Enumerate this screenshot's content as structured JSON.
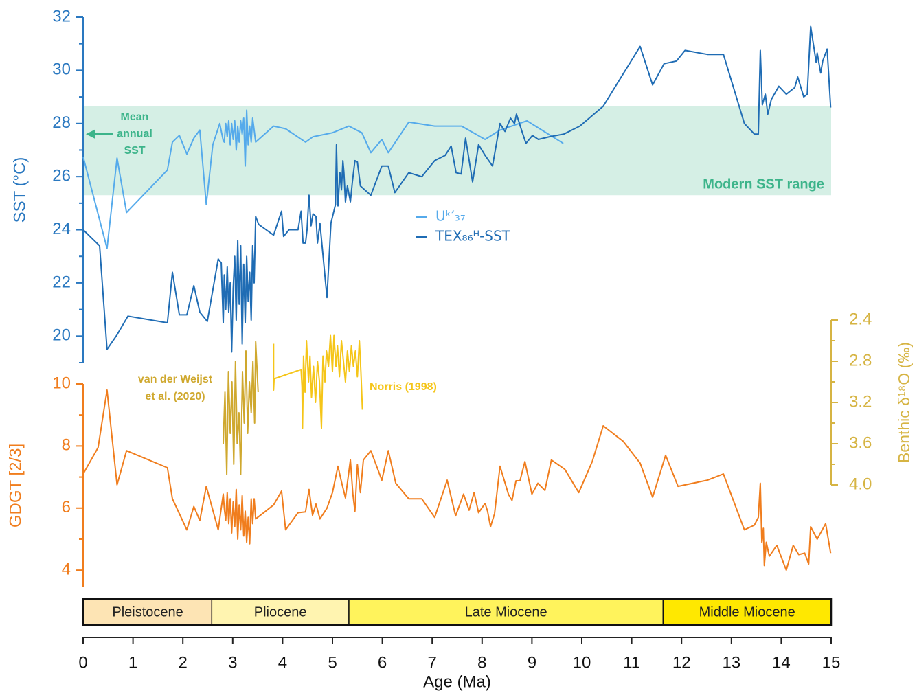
{
  "chart_data": [
    {
      "type": "line",
      "ylabel": "SST (°C)",
      "xlim": [
        0,
        15
      ],
      "ylim": [
        19,
        32
      ],
      "yticks": [
        20,
        22,
        24,
        26,
        28,
        30,
        32
      ],
      "yminorticks": [
        19,
        21,
        23,
        25,
        27,
        29,
        31
      ],
      "axis_color": "#2a78c0",
      "band": {
        "ymin": 25.3,
        "ymax": 28.65,
        "label": "Modern SST range",
        "color": "#d5efe5",
        "text_color": "#3cb48a"
      },
      "arrow": {
        "value": 27.6,
        "label": [
          "Mean",
          "annual",
          "SST"
        ],
        "color": "#3cb48a"
      },
      "series": [
        {
          "name": "Uᵏ′₃₇",
          "color": "#55aaeb",
          "x": [
            0,
            0.48,
            0.68,
            0.87,
            1.69,
            1.79,
            1.93,
            2.08,
            2.22,
            2.34,
            2.47,
            2.6,
            2.74,
            2.81,
            2.83,
            2.86,
            2.89,
            2.92,
            2.95,
            2.98,
            3.01,
            3.04,
            3.07,
            3.1,
            3.13,
            3.16,
            3.19,
            3.22,
            3.25,
            3.28,
            3.31,
            3.34,
            3.37,
            3.4,
            3.46,
            3.82,
            4.06,
            4.46,
            4.61,
            5.0,
            5.33,
            5.59,
            5.77,
            5.99,
            6.12,
            6.53,
            7.05,
            7.59,
            8.06,
            8.36,
            8.9,
            9.63
          ],
          "values": [
            26.75,
            23.3,
            26.7,
            24.65,
            26.25,
            27.3,
            27.55,
            26.85,
            27.45,
            27.75,
            24.95,
            27.2,
            28.0,
            27.35,
            27.3,
            28.0,
            27.5,
            28.1,
            27.2,
            28.0,
            27.4,
            28.1,
            27.0,
            27.9,
            27.3,
            28.1,
            27.6,
            28.2,
            26.4,
            28.5,
            27.2,
            27.9,
            27.3,
            28.2,
            27.3,
            27.9,
            27.8,
            27.3,
            27.5,
            27.65,
            27.9,
            27.65,
            26.9,
            27.4,
            26.9,
            28.05,
            27.9,
            27.9,
            27.4,
            27.75,
            28.1,
            27.25
          ]
        },
        {
          "name": "TEX₈₆ᴴ-SST",
          "color": "#1f6cb4",
          "x": [
            0,
            0.33,
            0.48,
            0.68,
            0.9,
            1.69,
            1.79,
            1.93,
            2.08,
            2.22,
            2.34,
            2.49,
            2.71,
            2.77,
            2.81,
            2.83,
            2.86,
            2.89,
            2.92,
            2.95,
            2.98,
            3.01,
            3.04,
            3.07,
            3.1,
            3.13,
            3.16,
            3.19,
            3.22,
            3.25,
            3.28,
            3.31,
            3.34,
            3.37,
            3.4,
            3.43,
            3.46,
            3.52,
            3.82,
            3.98,
            4.02,
            4.13,
            4.31,
            4.37,
            4.41,
            4.46,
            4.49,
            4.53,
            4.57,
            4.61,
            4.67,
            4.7,
            4.75,
            4.89,
            4.97,
            5.06,
            5.08,
            5.11,
            5.15,
            5.18,
            5.21,
            5.23,
            5.26,
            5.3,
            5.36,
            5.4,
            5.45,
            5.5,
            5.56,
            5.77,
            5.99,
            6.12,
            6.25,
            6.53,
            6.79,
            7.05,
            7.26,
            7.38,
            7.48,
            7.58,
            7.67,
            7.81,
            7.93,
            8.06,
            8.21,
            8.36,
            8.46,
            8.57,
            8.65,
            8.69,
            8.8,
            8.88,
            9.01,
            9.13,
            9.35,
            9.64,
            9.96,
            10.43,
            11.17,
            11.42,
            11.65,
            11.9,
            12.07,
            12.52,
            12.84,
            13.26,
            13.46,
            13.54,
            13.58,
            13.62,
            13.68,
            13.73,
            13.8,
            13.95,
            14.1,
            14.27,
            14.33,
            14.45,
            14.52,
            14.59,
            14.7,
            14.72,
            14.79,
            14.83,
            14.92,
            14.99
          ],
          "values": [
            24.0,
            23.4,
            19.5,
            20.05,
            20.75,
            20.5,
            22.4,
            20.8,
            20.8,
            21.9,
            20.9,
            20.55,
            22.9,
            22.75,
            20.5,
            22.3,
            21.0,
            22.6,
            20.9,
            22.0,
            19.4,
            21.8,
            23.0,
            20.6,
            23.6,
            21.2,
            23.4,
            19.7,
            22.7,
            20.5,
            23.0,
            21.3,
            22.4,
            20.6,
            23.4,
            22.0,
            24.5,
            24.2,
            23.8,
            24.7,
            23.75,
            24.0,
            24.0,
            24.7,
            23.5,
            23.5,
            24.0,
            25.3,
            24.15,
            24.6,
            24.5,
            23.5,
            24.25,
            21.45,
            24.25,
            24.95,
            27.2,
            24.9,
            26.15,
            25.5,
            26.6,
            26.15,
            25.05,
            25.65,
            25.05,
            25.8,
            26.6,
            26.55,
            25.65,
            25.3,
            26.4,
            26.4,
            25.4,
            26.15,
            26.0,
            26.6,
            26.8,
            27.15,
            26.15,
            26.1,
            27.45,
            25.8,
            27.2,
            26.8,
            26.4,
            28.0,
            27.7,
            28.2,
            28.0,
            28.35,
            27.7,
            27.25,
            27.55,
            27.4,
            27.5,
            27.6,
            27.9,
            28.65,
            30.9,
            29.45,
            30.25,
            30.35,
            30.75,
            30.6,
            30.6,
            28.0,
            27.6,
            27.6,
            30.75,
            28.7,
            29.1,
            28.35,
            28.9,
            29.4,
            29.1,
            29.35,
            29.75,
            29.0,
            29.1,
            31.65,
            30.3,
            30.65,
            29.9,
            30.35,
            30.8,
            28.6
          ]
        }
      ]
    },
    {
      "type": "line",
      "ylabel": "GDGT [2/3]",
      "y2label": "Benthic δ¹⁸O (‰)",
      "xlabel": "Age (Ma)",
      "xlim": [
        0,
        15
      ],
      "xticks": [
        0,
        1,
        2,
        3,
        4,
        5,
        6,
        7,
        8,
        9,
        10,
        11,
        12,
        13,
        14,
        15
      ],
      "ylim": [
        3.45,
        10
      ],
      "yticks": [
        4,
        6,
        8,
        10
      ],
      "yminorticks": [
        5,
        7,
        9
      ],
      "y2lim": [
        4.0,
        2.4
      ],
      "y2ticks": [
        2.4,
        2.8,
        3.2,
        3.6,
        {
          "value": 4,
          "label": "4.0"
        }
      ],
      "y2minorticks": [
        2.6,
        3.0,
        3.4,
        3.8
      ],
      "axis_color": "#f07d1d",
      "y2_color": "#d6b443",
      "series": [
        {
          "name": "GDGT [2/3]",
          "color": "#f07d1d",
          "x": [
            0,
            0.3,
            0.48,
            0.68,
            0.87,
            1.69,
            1.79,
            2.08,
            2.22,
            2.34,
            2.47,
            2.71,
            2.81,
            2.83,
            2.86,
            2.89,
            2.92,
            2.95,
            2.98,
            3.01,
            3.04,
            3.07,
            3.1,
            3.13,
            3.16,
            3.19,
            3.22,
            3.25,
            3.28,
            3.31,
            3.34,
            3.37,
            3.4,
            3.43,
            3.46,
            3.82,
            3.98,
            4.06,
            4.31,
            4.46,
            4.53,
            4.6,
            4.67,
            4.75,
            4.89,
            5.0,
            5.11,
            5.18,
            5.26,
            5.36,
            5.41,
            5.45,
            5.5,
            5.56,
            5.62,
            5.77,
            5.99,
            6.12,
            6.27,
            6.53,
            6.79,
            7.05,
            7.3,
            7.47,
            7.63,
            7.74,
            7.84,
            7.93,
            8.06,
            8.11,
            8.17,
            8.25,
            8.36,
            8.53,
            8.6,
            8.68,
            8.76,
            8.86,
            9.0,
            9.12,
            9.26,
            9.39,
            9.66,
            9.94,
            10.21,
            10.43,
            10.83,
            11.17,
            11.42,
            11.68,
            11.93,
            12.52,
            12.84,
            13.26,
            13.46,
            13.54,
            13.58,
            13.61,
            13.64,
            13.66,
            13.7,
            13.76,
            13.91,
            14.1,
            14.24,
            14.35,
            14.47,
            14.55,
            14.59,
            14.72,
            14.89,
            14.99
          ],
          "values": [
            7.1,
            7.95,
            9.8,
            6.75,
            7.85,
            7.3,
            6.3,
            5.3,
            6.05,
            5.6,
            6.7,
            5.3,
            6.45,
            6.0,
            5.6,
            6.5,
            5.5,
            6.3,
            5.2,
            6.2,
            5.4,
            6.6,
            5.0,
            6.1,
            5.3,
            6.4,
            5.1,
            5.9,
            4.9,
            5.7,
            4.85,
            6.3,
            5.5,
            6.3,
            5.65,
            6.1,
            6.55,
            5.3,
            5.85,
            5.88,
            6.6,
            5.77,
            6.13,
            5.65,
            6.0,
            6.5,
            7.35,
            6.85,
            6.33,
            7.55,
            6.44,
            5.9,
            7.4,
            6.5,
            7.55,
            7.85,
            6.9,
            7.85,
            6.8,
            6.3,
            6.3,
            5.7,
            6.9,
            5.75,
            6.45,
            5.93,
            6.5,
            5.85,
            6.15,
            5.9,
            5.4,
            5.82,
            7.35,
            6.44,
            6.25,
            6.88,
            6.88,
            7.5,
            6.45,
            6.8,
            6.57,
            7.55,
            7.25,
            6.5,
            7.5,
            8.65,
            8.15,
            7.45,
            6.35,
            7.7,
            6.7,
            6.9,
            7.1,
            5.3,
            5.45,
            5.7,
            6.8,
            4.9,
            5.35,
            4.15,
            4.9,
            4.45,
            4.8,
            4.0,
            4.8,
            4.5,
            4.55,
            4.2,
            5.4,
            5.0,
            5.5,
            4.55
          ]
        },
        {
          "label": [
            "van der Weijst",
            "et al. (2020)"
          ],
          "color": "#cfa82e",
          "axis": "y2",
          "x": [
            2.81,
            2.845,
            2.88,
            2.915,
            2.95,
            2.985,
            3.02,
            3.055,
            3.09,
            3.125,
            3.16,
            3.195,
            3.23,
            3.265,
            3.3,
            3.335,
            3.37,
            3.405,
            3.44,
            3.46,
            3.51
          ],
          "values": [
            3.6,
            3.1,
            3.9,
            2.9,
            3.5,
            3.0,
            3.8,
            2.8,
            3.6,
            3.3,
            3.9,
            2.9,
            3.4,
            2.7,
            3.5,
            3.0,
            3.3,
            2.8,
            3.4,
            2.61,
            3.1
          ]
        },
        {
          "label": [
            "Norris (1998)"
          ],
          "color": "#f5c518",
          "axis": "y2",
          "x": [
            3.82,
            3.82,
            3.83,
            4.37,
            4.39,
            4.4,
            4.42,
            4.45,
            4.48,
            4.52,
            4.55,
            4.58,
            4.62,
            4.66,
            4.7,
            4.74,
            4.78,
            4.81,
            4.85,
            4.88,
            4.92,
            4.96,
            5.0,
            5.03,
            5.07,
            5.1,
            5.14,
            5.18,
            5.22,
            5.26,
            5.3,
            5.34,
            5.38,
            5.42,
            5.46,
            5.5,
            5.54,
            5.57,
            5.6
          ],
          "values": [
            2.63,
            3.08,
            2.97,
            2.88,
            3.05,
            3.45,
            2.75,
            3.1,
            2.6,
            3.0,
            2.75,
            3.15,
            2.85,
            3.2,
            2.8,
            3.0,
            3.45,
            2.75,
            3.0,
            2.7,
            2.85,
            2.55,
            2.9,
            2.55,
            2.85,
            2.65,
            2.95,
            2.6,
            2.8,
            3.0,
            2.7,
            2.9,
            2.65,
            2.85,
            2.7,
            2.95,
            2.6,
            2.9,
            3.27
          ]
        }
      ],
      "epochs": [
        {
          "name": null,
          "start": 0,
          "end": 0.0117,
          "color": "#ffffff"
        },
        {
          "name": "Pleistocene",
          "start": 0.0117,
          "end": 2.58,
          "color": "#fde4b4"
        },
        {
          "name": "Pliocene",
          "start": 2.58,
          "end": 5.33,
          "color": "#fff4b0"
        },
        {
          "name": "Late Miocene",
          "start": 5.33,
          "end": 11.63,
          "color": "#fff35c"
        },
        {
          "name": "Middle Miocene",
          "start": 11.63,
          "end": 15,
          "color": "#ffe800"
        }
      ]
    }
  ]
}
